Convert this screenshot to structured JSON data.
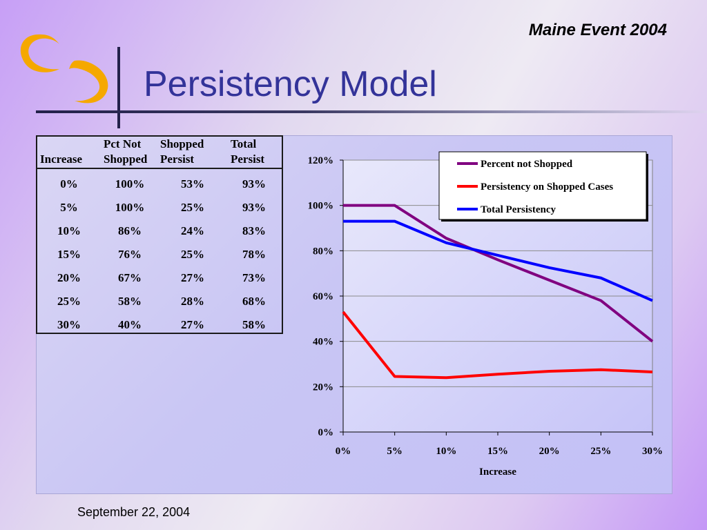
{
  "header": {
    "event_title": "Maine Event 2004",
    "page_title": "Persistency Model"
  },
  "table": {
    "headers": [
      [
        "Increase"
      ],
      [
        "Pct Not",
        "Shopped"
      ],
      [
        "Shopped",
        "Persist"
      ],
      [
        "Total",
        "Persist"
      ]
    ],
    "rows": [
      [
        "0%",
        "100%",
        "53%",
        "93%"
      ],
      [
        "5%",
        "100%",
        "25%",
        "93%"
      ],
      [
        "10%",
        "86%",
        "24%",
        "83%"
      ],
      [
        "15%",
        "76%",
        "25%",
        "78%"
      ],
      [
        "20%",
        "67%",
        "27%",
        "73%"
      ],
      [
        "25%",
        "58%",
        "28%",
        "68%"
      ],
      [
        "30%",
        "40%",
        "27%",
        "58%"
      ]
    ]
  },
  "chart_data": {
    "type": "line",
    "xlabel": "Increase",
    "ylabel": "",
    "x": [
      "0%",
      "5%",
      "10%",
      "15%",
      "20%",
      "25%",
      "30%"
    ],
    "ylim": [
      0,
      120
    ],
    "yticks": [
      "0%",
      "20%",
      "40%",
      "60%",
      "80%",
      "100%",
      "120%"
    ],
    "grid": true,
    "legend_position": "top-right",
    "series": [
      {
        "name": "Percent not Shopped",
        "color": "#800080",
        "values": [
          100,
          100,
          85.5,
          76,
          67,
          58,
          40
        ]
      },
      {
        "name": "Persistency on Shopped Cases",
        "color": "#ff0000",
        "values": [
          53,
          24.5,
          24,
          25.5,
          26.8,
          27.5,
          26.5
        ]
      },
      {
        "name": "Total Persistency",
        "color": "#0000ff",
        "values": [
          93,
          93,
          83.5,
          78,
          72.5,
          68,
          58
        ]
      }
    ]
  },
  "footer": {
    "date": "September 22, 2004"
  },
  "colors": {
    "title": "#333399",
    "rule": "#23214a",
    "logo_orange": "#f5a800"
  },
  "icons": {
    "logo": "swoosh-logo-icon"
  }
}
